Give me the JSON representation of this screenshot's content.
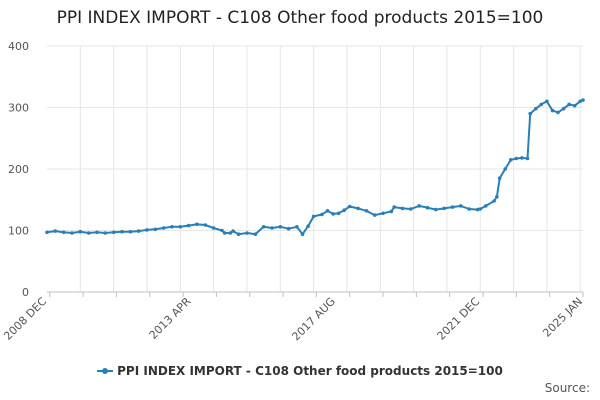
{
  "title": "PPI INDEX IMPORT - C108 Other food products 2015=100",
  "source_label": "Source:",
  "colors": {
    "series": "#2b7fb8",
    "grid": "#e6e6e6",
    "axis": "#c0c0c0"
  },
  "chart_data": {
    "type": "line",
    "title": "PPI INDEX IMPORT - C108 Other food products 2015=100",
    "xlabel": "",
    "ylabel": "",
    "ylim": [
      0,
      400
    ],
    "yticks": [
      0,
      100,
      200,
      300,
      400
    ],
    "xlim": [
      "2008-12",
      "2025-01"
    ],
    "xtick_labels": [
      {
        "label": "2008 DEC",
        "date": "2008-12"
      },
      {
        "label": "2013 APR",
        "date": "2013-04"
      },
      {
        "label": "2017 AUG",
        "date": "2017-08"
      },
      {
        "label": "2021 DEC",
        "date": "2021-12"
      },
      {
        "label": "2025 JAN",
        "date": "2025-01"
      }
    ],
    "grid": true,
    "legend_position": "bottom",
    "series": [
      {
        "name": "PPI INDEX IMPORT - C108 Other food products 2015=100",
        "points": [
          [
            "2008-12",
            97
          ],
          [
            "2009-03",
            99
          ],
          [
            "2009-06",
            97
          ],
          [
            "2009-09",
            96
          ],
          [
            "2009-12",
            98
          ],
          [
            "2010-03",
            96
          ],
          [
            "2010-06",
            97
          ],
          [
            "2010-09",
            96
          ],
          [
            "2010-12",
            97
          ],
          [
            "2011-03",
            98
          ],
          [
            "2011-06",
            98
          ],
          [
            "2011-09",
            99
          ],
          [
            "2011-12",
            101
          ],
          [
            "2012-03",
            102
          ],
          [
            "2012-06",
            104
          ],
          [
            "2012-09",
            106
          ],
          [
            "2012-12",
            106
          ],
          [
            "2013-03",
            108
          ],
          [
            "2013-06",
            110
          ],
          [
            "2013-09",
            109
          ],
          [
            "2013-12",
            104
          ],
          [
            "2014-03",
            100
          ],
          [
            "2014-04",
            96
          ],
          [
            "2014-06",
            96
          ],
          [
            "2014-07",
            99
          ],
          [
            "2014-09",
            94
          ],
          [
            "2014-12",
            96
          ],
          [
            "2015-03",
            94
          ],
          [
            "2015-06",
            106
          ],
          [
            "2015-09",
            104
          ],
          [
            "2015-12",
            106
          ],
          [
            "2016-03",
            103
          ],
          [
            "2016-06",
            106
          ],
          [
            "2016-08",
            94
          ],
          [
            "2016-10",
            107
          ],
          [
            "2016-12",
            123
          ],
          [
            "2017-03",
            126
          ],
          [
            "2017-05",
            132
          ],
          [
            "2017-07",
            127
          ],
          [
            "2017-09",
            128
          ],
          [
            "2017-11",
            133
          ],
          [
            "2018-01",
            139
          ],
          [
            "2018-04",
            136
          ],
          [
            "2018-07",
            132
          ],
          [
            "2018-10",
            125
          ],
          [
            "2019-01",
            128
          ],
          [
            "2019-04",
            131
          ],
          [
            "2019-05",
            138
          ],
          [
            "2019-08",
            136
          ],
          [
            "2019-11",
            135
          ],
          [
            "2020-02",
            140
          ],
          [
            "2020-05",
            137
          ],
          [
            "2020-08",
            134
          ],
          [
            "2020-11",
            136
          ],
          [
            "2021-02",
            138
          ],
          [
            "2021-05",
            140
          ],
          [
            "2021-08",
            135
          ],
          [
            "2021-11",
            134
          ],
          [
            "2021-12",
            135
          ],
          [
            "2022-02",
            140
          ],
          [
            "2022-05",
            148
          ],
          [
            "2022-06",
            155
          ],
          [
            "2022-07",
            185
          ],
          [
            "2022-09",
            200
          ],
          [
            "2022-11",
            215
          ],
          [
            "2023-01",
            217
          ],
          [
            "2023-03",
            218
          ],
          [
            "2023-05",
            217
          ],
          [
            "2023-06",
            290
          ],
          [
            "2023-08",
            298
          ],
          [
            "2023-10",
            305
          ],
          [
            "2023-12",
            310
          ],
          [
            "2024-02",
            295
          ],
          [
            "2024-04",
            292
          ],
          [
            "2024-06",
            298
          ],
          [
            "2024-08",
            305
          ],
          [
            "2024-10",
            303
          ],
          [
            "2024-12",
            310
          ],
          [
            "2025-01",
            312
          ]
        ]
      }
    ]
  }
}
